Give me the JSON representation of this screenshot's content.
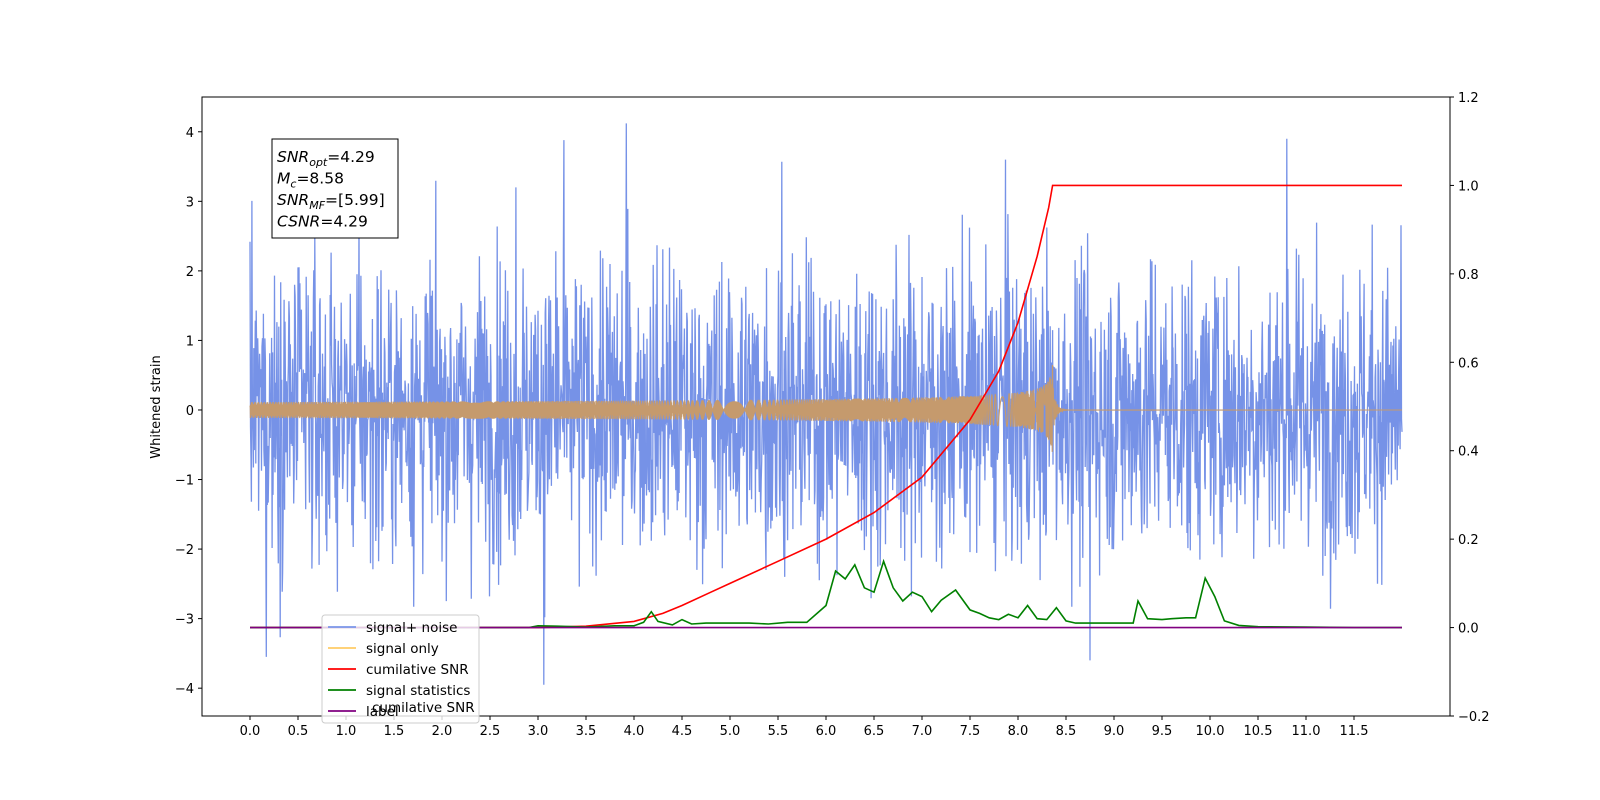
{
  "chart_data": {
    "type": "line",
    "ylabel": "Whitened strain",
    "xlim": [
      -0.5,
      12.5
    ],
    "ylim_left": [
      -4.4,
      4.5
    ],
    "ylim_right": [
      -0.2,
      1.2
    ],
    "x_ticks": [
      0.0,
      0.5,
      1.0,
      1.5,
      2.0,
      2.5,
      3.0,
      3.5,
      4.0,
      4.5,
      5.0,
      5.5,
      6.0,
      6.5,
      7.0,
      7.5,
      8.0,
      8.5,
      9.0,
      9.5,
      10.0,
      10.5,
      11.0,
      11.5
    ],
    "x_tick_labels": [
      "0.0",
      "0.5",
      "1.0",
      "1.5",
      "2.0",
      "2.5",
      "3.0",
      "3.5",
      "4.0",
      "4.5",
      "5.0",
      "5.5",
      "6.0",
      "6.5",
      "7.0",
      "7.5",
      "8.0",
      "8.5",
      "9.0",
      "9.5",
      "10.0",
      "10.5",
      "11.0",
      "11.5"
    ],
    "y_left_ticks": [
      -4,
      -3,
      -2,
      -1,
      0,
      1,
      2,
      3,
      4
    ],
    "y_left_tick_labels": [
      "−4",
      "−3",
      "−2",
      "−1",
      "0",
      "1",
      "2",
      "3",
      "4"
    ],
    "y_right_ticks": [
      -0.2,
      0.0,
      0.2,
      0.4,
      0.6,
      0.8,
      1.0,
      1.2
    ],
    "y_right_tick_labels": [
      "−0.2",
      "0.0",
      "0.2",
      "0.4",
      "0.6",
      "0.8",
      "1.0",
      "1.2"
    ],
    "grid": false,
    "legend_position": "lower-left",
    "legend": [
      {
        "label": "signal+ noise",
        "color": "#7a95e8"
      },
      {
        "label": "signal only",
        "color": "#ffcc66"
      },
      {
        "label": "cumilative SNR",
        "color": "#ff0000"
      },
      {
        "label": "signal statistics",
        "color": "#008000"
      },
      {
        "label": "label",
        "color": "#800080"
      }
    ],
    "legend_hidden_text": "cumilative SNR",
    "info_box": [
      {
        "main": "SNR",
        "sub": "opt",
        "rest": "=4.29"
      },
      {
        "main": "M",
        "sub": "c",
        "rest": "=8.58"
      },
      {
        "main": "SNR",
        "sub": "MF",
        "rest": "=[5.99]"
      },
      {
        "main": "CSNR",
        "sub": "",
        "rest": "=4.29"
      }
    ],
    "series": [
      {
        "name": "signal+ noise",
        "axis": "left",
        "color": "#6f8ce6",
        "x_range": [
          0.0,
          12.0
        ],
        "envelope_min": -3.95,
        "envelope_max": 4.12,
        "spikes": [
          {
            "x": 0.0,
            "y": 2.42
          },
          {
            "x": 0.17,
            "y": -3.55
          },
          {
            "x": 2.77,
            "y": 3.2
          },
          {
            "x": 3.06,
            "y": -3.95
          },
          {
            "x": 3.27,
            "y": 3.88
          },
          {
            "x": 3.92,
            "y": 4.12
          },
          {
            "x": 5.54,
            "y": 3.57
          },
          {
            "x": 7.87,
            "y": 3.6
          },
          {
            "x": 8.75,
            "y": -3.6
          },
          {
            "x": 10.8,
            "y": 3.9
          }
        ]
      },
      {
        "name": "signal only",
        "axis": "left",
        "color": "#c59a6d",
        "x_range": [
          0.0,
          8.36
        ],
        "peak_x": 8.36,
        "peak_y": 0.65
      },
      {
        "name": "cumilative SNR",
        "axis": "right",
        "color": "#ff0000",
        "x": [
          0.0,
          3.0,
          3.5,
          4.0,
          4.3,
          4.5,
          4.8,
          5.0,
          5.5,
          6.0,
          6.5,
          7.0,
          7.5,
          7.8,
          8.0,
          8.2,
          8.32,
          8.36,
          12.0
        ],
        "y": [
          0.0,
          0.0,
          0.003,
          0.014,
          0.032,
          0.05,
          0.08,
          0.1,
          0.15,
          0.2,
          0.26,
          0.34,
          0.47,
          0.58,
          0.69,
          0.84,
          0.95,
          1.0,
          1.0
        ]
      },
      {
        "name": "signal statistics",
        "axis": "right",
        "color": "#008000",
        "x": [
          0.0,
          2.9,
          3.0,
          3.2,
          3.5,
          3.8,
          4.0,
          4.1,
          4.18,
          4.25,
          4.4,
          4.5,
          4.6,
          4.75,
          4.85,
          5.0,
          5.2,
          5.4,
          5.6,
          5.8,
          6.0,
          6.1,
          6.2,
          6.3,
          6.4,
          6.5,
          6.6,
          6.7,
          6.8,
          6.9,
          7.0,
          7.1,
          7.2,
          7.35,
          7.5,
          7.6,
          7.7,
          7.8,
          7.9,
          8.0,
          8.1,
          8.2,
          8.3,
          8.4,
          8.5,
          8.6,
          8.8,
          9.0,
          9.1,
          9.2,
          9.25,
          9.35,
          9.5,
          9.6,
          9.75,
          9.85,
          9.95,
          10.05,
          10.15,
          10.3,
          10.5,
          11.0,
          11.5,
          12.0
        ],
        "y": [
          0.0,
          0.0,
          0.004,
          0.003,
          0.001,
          0.004,
          0.004,
          0.012,
          0.036,
          0.014,
          0.006,
          0.018,
          0.008,
          0.01,
          0.01,
          0.01,
          0.01,
          0.008,
          0.012,
          0.012,
          0.05,
          0.128,
          0.11,
          0.142,
          0.09,
          0.08,
          0.15,
          0.09,
          0.06,
          0.08,
          0.07,
          0.036,
          0.062,
          0.085,
          0.04,
          0.032,
          0.022,
          0.018,
          0.03,
          0.022,
          0.05,
          0.02,
          0.018,
          0.045,
          0.015,
          0.01,
          0.01,
          0.01,
          0.01,
          0.01,
          0.06,
          0.02,
          0.018,
          0.02,
          0.022,
          0.022,
          0.112,
          0.07,
          0.015,
          0.005,
          0.002,
          0.001,
          0.0,
          0.0
        ]
      },
      {
        "name": "label",
        "axis": "right",
        "color": "#800080",
        "x": [
          0.0,
          12.0
        ],
        "y": [
          0.0,
          0.0
        ]
      }
    ]
  }
}
